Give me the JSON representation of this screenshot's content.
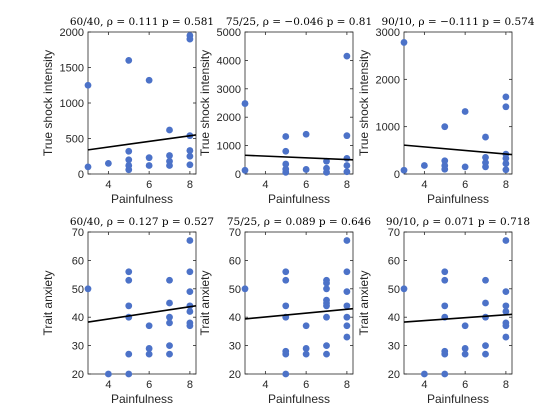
{
  "colors": {
    "point": "#4c72c8",
    "fit_line": "#000000",
    "axis": "#262626"
  },
  "chart_data": [
    {
      "type": "scatter",
      "title": "60/40, ρ = 0.111  p = 0.581",
      "xlabel": "Painfulness",
      "ylabel": "True shock intensity",
      "xlim": [
        3,
        8.3
      ],
      "ylim": [
        0,
        2000
      ],
      "xticks": [
        "4",
        "6",
        "8"
      ],
      "yticks": [
        "0",
        "500",
        "1000",
        "1500",
        "2000"
      ],
      "points": [
        [
          3,
          1250
        ],
        [
          3,
          100
        ],
        [
          4,
          150
        ],
        [
          5,
          1600
        ],
        [
          5,
          320
        ],
        [
          5,
          200
        ],
        [
          5,
          120
        ],
        [
          5,
          60
        ],
        [
          6,
          1320
        ],
        [
          6,
          230
        ],
        [
          6,
          120
        ],
        [
          7,
          620
        ],
        [
          7,
          260
        ],
        [
          7,
          180
        ],
        [
          7,
          120
        ],
        [
          8,
          1950
        ],
        [
          8,
          1900
        ],
        [
          8,
          540
        ],
        [
          8,
          330
        ],
        [
          8,
          250
        ],
        [
          8,
          130
        ]
      ],
      "fit": [
        [
          3,
          340
        ],
        [
          8.3,
          550
        ]
      ]
    },
    {
      "type": "scatter",
      "title": "75/25, ρ = −0.046  p = 0.81",
      "xlabel": "Painfulness",
      "ylabel": "True shock intensity",
      "xlim": [
        3,
        8.3
      ],
      "ylim": [
        0,
        5000
      ],
      "xticks": [
        "4",
        "6",
        "8"
      ],
      "yticks": [
        "0",
        "1000",
        "2000",
        "3000",
        "4000",
        "5000"
      ],
      "points": [
        [
          3,
          2480
        ],
        [
          3,
          130
        ],
        [
          5,
          1320
        ],
        [
          5,
          800
        ],
        [
          5,
          350
        ],
        [
          5,
          170
        ],
        [
          5,
          60
        ],
        [
          6,
          1400
        ],
        [
          6,
          160
        ],
        [
          7,
          450
        ],
        [
          7,
          200
        ],
        [
          7,
          60
        ],
        [
          8,
          4150
        ],
        [
          8,
          1350
        ],
        [
          8,
          550
        ],
        [
          8,
          300
        ],
        [
          8,
          80
        ]
      ],
      "fit": [
        [
          3,
          660
        ],
        [
          8.3,
          500
        ]
      ]
    },
    {
      "type": "scatter",
      "title": "90/10, ρ = −0.111  p = 0.574",
      "xlabel": "Painfulness",
      "ylabel": "True shock intensity",
      "xlim": [
        3,
        8.3
      ],
      "ylim": [
        0,
        3000
      ],
      "xticks": [
        "4",
        "6",
        "8"
      ],
      "yticks": [
        "0",
        "1000",
        "2000",
        "3000"
      ],
      "points": [
        [
          3,
          2780
        ],
        [
          3,
          80
        ],
        [
          4,
          180
        ],
        [
          5,
          1000
        ],
        [
          5,
          280
        ],
        [
          5,
          180
        ],
        [
          5,
          100
        ],
        [
          6,
          1320
        ],
        [
          6,
          150
        ],
        [
          7,
          780
        ],
        [
          7,
          350
        ],
        [
          7,
          240
        ],
        [
          7,
          150
        ],
        [
          8,
          1630
        ],
        [
          8,
          1420
        ],
        [
          8,
          420
        ],
        [
          8,
          330
        ],
        [
          8,
          220
        ],
        [
          8,
          90
        ]
      ],
      "fit": [
        [
          3,
          610
        ],
        [
          8.3,
          410
        ]
      ]
    },
    {
      "type": "scatter",
      "title": "60/40, ρ = 0.127  p = 0.527",
      "xlabel": "Painfulness",
      "ylabel": "Trait anxiety",
      "xlim": [
        3,
        8.3
      ],
      "ylim": [
        20,
        70
      ],
      "xticks": [
        "4",
        "6",
        "8"
      ],
      "yticks": [
        "20",
        "30",
        "40",
        "50",
        "60",
        "70"
      ],
      "points": [
        [
          3,
          50
        ],
        [
          4,
          20
        ],
        [
          5,
          56
        ],
        [
          5,
          53
        ],
        [
          5,
          44
        ],
        [
          5,
          40
        ],
        [
          5,
          27
        ],
        [
          5,
          20
        ],
        [
          6,
          37
        ],
        [
          6,
          29
        ],
        [
          6,
          27
        ],
        [
          7,
          53
        ],
        [
          7,
          45
        ],
        [
          7,
          40
        ],
        [
          7,
          38
        ],
        [
          7,
          30
        ],
        [
          7,
          27
        ],
        [
          8,
          67
        ],
        [
          8,
          56
        ],
        [
          8,
          49
        ],
        [
          8,
          44
        ],
        [
          8,
          42
        ],
        [
          8,
          38
        ],
        [
          8,
          37
        ]
      ],
      "fit": [
        [
          3,
          38.3
        ],
        [
          8.3,
          44
        ]
      ]
    },
    {
      "type": "scatter",
      "title": "75/25, ρ = 0.089  p = 0.646",
      "xlabel": "Painfulness",
      "ylabel": "Trait anxiety",
      "xlim": [
        3,
        8.3
      ],
      "ylim": [
        20,
        70
      ],
      "xticks": [
        "4",
        "6",
        "8"
      ],
      "yticks": [
        "20",
        "30",
        "40",
        "50",
        "60",
        "70"
      ],
      "points": [
        [
          3,
          50
        ],
        [
          5,
          56
        ],
        [
          5,
          53
        ],
        [
          5,
          44
        ],
        [
          5,
          40
        ],
        [
          5,
          28
        ],
        [
          5,
          27
        ],
        [
          5,
          20
        ],
        [
          6,
          37
        ],
        [
          6,
          29
        ],
        [
          6,
          27
        ],
        [
          7,
          53
        ],
        [
          7,
          52
        ],
        [
          7,
          50
        ],
        [
          7,
          46
        ],
        [
          7,
          45
        ],
        [
          7,
          44
        ],
        [
          7,
          40
        ],
        [
          7,
          30
        ],
        [
          7,
          27
        ],
        [
          8,
          67
        ],
        [
          8,
          56
        ],
        [
          8,
          49
        ],
        [
          8,
          44
        ],
        [
          8,
          40
        ],
        [
          8,
          37
        ],
        [
          8,
          33
        ]
      ],
      "fit": [
        [
          3,
          39.4
        ],
        [
          8.3,
          43
        ]
      ]
    },
    {
      "type": "scatter",
      "title": "90/10, ρ = 0.071  p = 0.718",
      "xlabel": "Painfulness",
      "ylabel": "Trait anxiety",
      "xlim": [
        3,
        8.3
      ],
      "ylim": [
        20,
        70
      ],
      "xticks": [
        "4",
        "6",
        "8"
      ],
      "yticks": [
        "20",
        "30",
        "40",
        "50",
        "60",
        "70"
      ],
      "points": [
        [
          3,
          50
        ],
        [
          4,
          20
        ],
        [
          5,
          56
        ],
        [
          5,
          53
        ],
        [
          5,
          44
        ],
        [
          5,
          40
        ],
        [
          5,
          28
        ],
        [
          5,
          27
        ],
        [
          5,
          20
        ],
        [
          6,
          37
        ],
        [
          6,
          29
        ],
        [
          6,
          27
        ],
        [
          7,
          53
        ],
        [
          7,
          45
        ],
        [
          7,
          40
        ],
        [
          7,
          30
        ],
        [
          7,
          27
        ],
        [
          8,
          67
        ],
        [
          8,
          49
        ],
        [
          8,
          44
        ],
        [
          8,
          42
        ],
        [
          8,
          38
        ],
        [
          8,
          37
        ],
        [
          8,
          33
        ]
      ],
      "fit": [
        [
          3,
          38.3
        ],
        [
          8.3,
          41
        ]
      ]
    }
  ]
}
